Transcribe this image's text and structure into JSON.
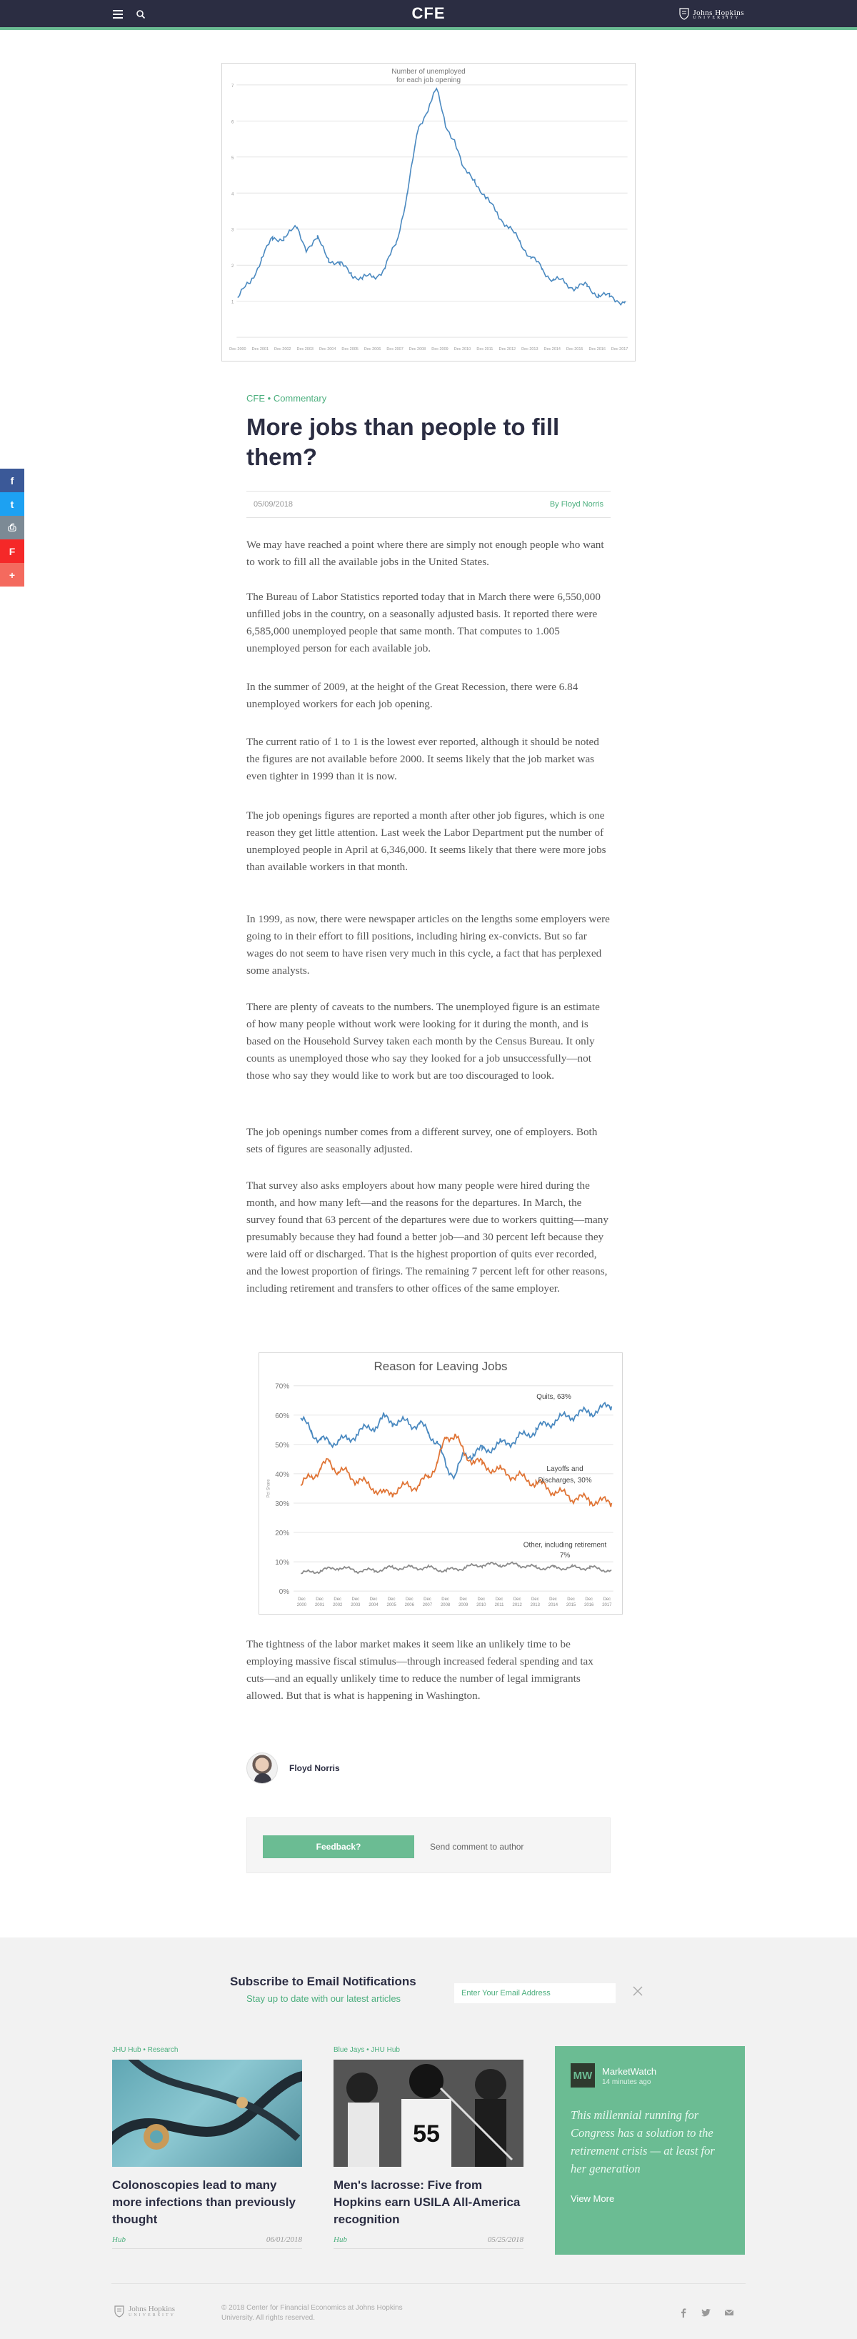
{
  "header": {
    "logo": "CFE",
    "brand": "Johns Hopkins",
    "brand_sub": "UNIVERSITY",
    "icons": [
      "menu-icon",
      "search-icon",
      "shield-icon"
    ],
    "bar_color": "#2b2d42",
    "accent_color": "#6bbc93"
  },
  "share": {
    "icons": [
      "facebook-icon",
      "twitter-icon",
      "print-icon",
      "flipboard-icon",
      "plus-icon"
    ],
    "labels": [
      "f",
      "t",
      "⎙",
      "F",
      "+"
    ],
    "colors": [
      "#3b5998",
      "#1da1f2",
      "#7c8a95",
      "#f52828",
      "#f46a5e"
    ]
  },
  "chart_data": [
    {
      "type": "line",
      "title": "Number of unemployed for each job opening",
      "title_lines": [
        "Number of unemployed",
        "for each job opening"
      ],
      "ylim": [
        0,
        7
      ],
      "yticks": [
        "1",
        "2",
        "3",
        "4",
        "5",
        "6",
        "7"
      ],
      "xticks": [
        "Dec 2000",
        "Dec 2001",
        "Dec 2002",
        "Dec 2003",
        "Dec 2004",
        "Dec 2005",
        "Dec 2006",
        "Dec 2007",
        "Dec 2008",
        "Dec 2009",
        "Dec 2010",
        "Dec 2011",
        "Dec 2012",
        "Dec 2013",
        "Dec 2014",
        "Dec 2015",
        "Dec 2016",
        "Dec 2017"
      ],
      "series": [
        {
          "color": "#4a89c0",
          "x": [
            2000.95,
            2001.5,
            2002.0,
            2002.5,
            2003.0,
            2003.6,
            2004.0,
            2004.5,
            2005.0,
            2005.5,
            2006.0,
            2006.5,
            2007.0,
            2007.5,
            2008.0,
            2008.5,
            2009.0,
            2009.5,
            2009.8,
            2010.2,
            2010.6,
            2011.0,
            2011.5,
            2012.0,
            2012.5,
            2013.0,
            2013.5,
            2014.0,
            2014.5,
            2015.0,
            2015.5,
            2016.0,
            2016.5,
            2017.0,
            2017.5,
            2018.2
          ],
          "values": [
            1.1,
            1.5,
            2.2,
            2.7,
            2.8,
            3.0,
            2.5,
            2.7,
            2.2,
            2.0,
            1.8,
            1.6,
            1.7,
            1.9,
            2.6,
            4.0,
            5.8,
            6.5,
            6.84,
            5.9,
            5.5,
            4.6,
            4.4,
            3.8,
            3.5,
            3.0,
            2.7,
            2.2,
            1.9,
            1.6,
            1.5,
            1.4,
            1.4,
            1.2,
            1.1,
            1.005
          ]
        }
      ]
    },
    {
      "type": "line",
      "title": "Reason for Leaving Jobs",
      "ylabel": "Pct Share",
      "ylim": [
        0,
        70
      ],
      "yticks": [
        "0%",
        "10%",
        "20%",
        "30%",
        "40%",
        "50%",
        "60%",
        "70%"
      ],
      "xticks": [
        "Dec 2000",
        "Dec 2001",
        "Dec 2002",
        "Dec 2003",
        "Dec 2004",
        "Dec 2005",
        "Dec 2006",
        "Dec 2007",
        "Dec 2008",
        "Dec 2009",
        "Dec 2010",
        "Dec 2011",
        "Dec 2012",
        "Dec 2013",
        "Dec 2014",
        "Dec 2015",
        "Dec 2016",
        "Dec 2017"
      ],
      "annotations": [
        "Quits, 63%",
        "Layoffs and Discharges, 30%",
        "Other, including retirement, 7%"
      ],
      "series": [
        {
          "color": "#4a89c0",
          "x": [
            2000.9,
            2001.5,
            2002.0,
            2002.5,
            2003.0,
            2003.5,
            2004.0,
            2005.0,
            2005.5,
            2006.0,
            2007.0,
            2007.5,
            2008.0,
            2008.5,
            2009.0,
            2009.5,
            2010.0,
            2010.5,
            2011.0,
            2012.0,
            2013.0,
            2014.0,
            2015.0,
            2016.0,
            2017.0,
            2018.2
          ],
          "values": [
            59,
            54,
            52,
            50,
            52,
            51,
            54,
            56,
            59,
            58,
            57,
            57,
            54,
            51,
            42,
            40,
            46,
            47,
            48,
            50,
            52,
            55,
            58,
            60,
            61,
            63
          ]
        },
        {
          "color": "#e07435",
          "x": [
            2000.9,
            2001.5,
            2002.0,
            2002.5,
            2003.0,
            2003.5,
            2004.0,
            2005.0,
            2005.5,
            2006.0,
            2007.0,
            2007.5,
            2008.0,
            2008.5,
            2009.0,
            2009.5,
            2010.0,
            2010.5,
            2011.0,
            2012.0,
            2013.0,
            2014.0,
            2015.0,
            2016.0,
            2017.0,
            2018.2
          ],
          "values": [
            36,
            39,
            42,
            44,
            41,
            40,
            38,
            35,
            33,
            34,
            36,
            36,
            39,
            44,
            52,
            54,
            46,
            45,
            43,
            41,
            39,
            37,
            34,
            32,
            31,
            30
          ]
        },
        {
          "color": "#8a8a8a",
          "x": [
            2000.9,
            2002.0,
            2003.0,
            2004.0,
            2005.0,
            2006.0,
            2007.0,
            2008.0,
            2009.0,
            2010.0,
            2011.0,
            2012.0,
            2013.0,
            2014.0,
            2015.0,
            2016.0,
            2017.0,
            2018.2
          ],
          "values": [
            6,
            7,
            8,
            7,
            7,
            8,
            8,
            8,
            7,
            8,
            9,
            9,
            9,
            8,
            8,
            8,
            8,
            7
          ]
        }
      ]
    }
  ],
  "article": {
    "category": "CFE",
    "separator": "•",
    "subcategory": "Commentary",
    "title": "More jobs than people to fill them?",
    "date": "05/09/2018",
    "byline": "By Floyd Norris",
    "paragraphs": [
      "We may have reached a point where there are simply not enough people who want to work to fill all the available jobs in the United States.",
      "The Bureau of Labor Statistics reported today that in March there were 6,550,000 unfilled jobs in the country, on a seasonally adjusted basis. It reported there were 6,585,000 unemployed people that same month. That computes to 1.005 unemployed person for each available job.",
      "In the summer of 2009, at the height of the Great Recession, there were 6.84 unemployed workers for each job opening.",
      "The current ratio of 1 to 1 is the lowest ever reported, although it should be noted the figures are not available before 2000. It seems likely that the job market was even tighter in 1999 than it is now.",
      "The job openings figures are reported a month after other job figures, which is one reason they get little attention. Last week the Labor Department put the number of unemployed people in April at 6,346,000. It seems likely that there were more jobs than available workers in that month.",
      "In 1999, as now, there were newspaper articles on the lengths some employers were going to in their effort to fill positions, including hiring ex-convicts. But so far wages do not seem to have risen very much in this cycle, a fact that has perplexed some analysts.",
      "There are plenty of caveats to the numbers. The unemployed figure is an estimate of how many people without work were looking for it during the month, and is based on the Household Survey taken each month by the Census Bureau. It only counts as unemployed those who say they looked for a job unsuccessfully—not those who say they would like to work but are too discouraged to look.",
      "The job openings number comes from a different survey, one of employers. Both sets of figures are seasonally adjusted.",
      "That survey also asks employers about how many people were hired during the month, and how many left—and the reasons for the departures. In March, the survey found that 63 percent of the departures were due to workers quitting—many presumably because they had found a better job—and 30 percent left because they were laid off or discharged. That is the highest proportion of quits ever recorded, and the lowest proportion of firings. The remaining 7 percent left for other reasons, including retirement and transfers to other offices of the same employer.",
      "The tightness of the labor market makes it seem like an unlikely time to be employing massive fiscal stimulus—through increased federal spending and tax cuts—and an equally unlikely time to reduce the number of legal immigrants allowed. But that is what is happening in Washington."
    ],
    "author_name": "Floyd Norris"
  },
  "feedback": {
    "button_label": "Feedback?",
    "send_label": "Send comment to author"
  },
  "subscribe": {
    "title": "Subscribe to Email Notifications",
    "subtitle": "Stay up to date with our latest articles",
    "placeholder": "Enter Your Email Address"
  },
  "cards": [
    {
      "category": "JHU Hub • Research",
      "title": "Colonoscopies lead to many more infections than previously thought",
      "source": "Hub",
      "date": "06/01/2018"
    },
    {
      "category": "Blue Jays • JHU Hub",
      "title": "Men's lacrosse: Five from Hopkins earn USILA All-America recognition",
      "source": "Hub",
      "date": "05/25/2018"
    }
  ],
  "promo": {
    "logo": "MW",
    "name": "MarketWatch",
    "time": "14 minutes ago",
    "quote": "This millennial running for Congress has a solution to the retirement crisis — at least for her generation",
    "more": "View More"
  },
  "footer": {
    "brand": "Johns Hopkins",
    "brand_sub": "UNIVERSITY",
    "copyright": "© 2018 Center for Financial Economics at Johns Hopkins University. All rights reserved.",
    "social_icons": [
      "facebook-icon",
      "twitter-icon",
      "email-icon"
    ]
  }
}
